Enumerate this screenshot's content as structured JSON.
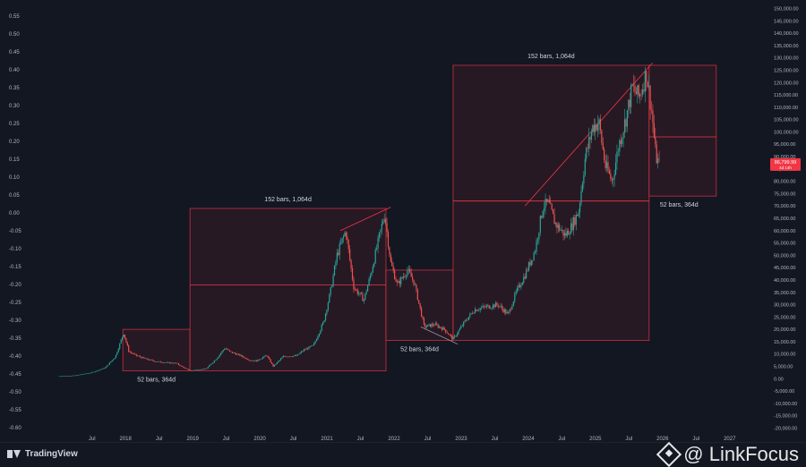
{
  "chart_data": {
    "type": "candlestick",
    "title": "",
    "xlabel": "",
    "ylabel": "",
    "colors": {
      "up": "#26a69a",
      "down": "#ef5350",
      "box_fill": "#2a1a24",
      "box_line": "#f23645",
      "background": "#131722",
      "text": "#b2b5be"
    },
    "x_ticks": [
      "Jul",
      "2018",
      "Jul",
      "2019",
      "Jul",
      "2020",
      "Jul",
      "2021",
      "Jul",
      "2022",
      "Jul",
      "2023",
      "Jul",
      "2024",
      "Jul",
      "2025",
      "Jul",
      "2026",
      "Jul",
      "2027"
    ],
    "left_ticks": [
      "0.55",
      "0.50",
      "0.45",
      "0.40",
      "0.35",
      "0.30",
      "0.25",
      "0.20",
      "0.15",
      "0.10",
      "0.05",
      "0.00",
      "-0.05",
      "-0.10",
      "-0.15",
      "-0.20",
      "-0.25",
      "-0.30",
      "-0.35",
      "-0.40",
      "-0.45",
      "-0.50",
      "-0.55",
      "-0.60"
    ],
    "right_ticks": [
      "150,000.00",
      "145,000.00",
      "140,000.00",
      "135,000.00",
      "130,000.00",
      "125,000.00",
      "120,000.00",
      "115,000.00",
      "110,000.00",
      "105,000.00",
      "100,000.00",
      "95,000.00",
      "90,000.00",
      "85,000.00",
      "80,000.00",
      "75,000.00",
      "70,000.00",
      "65,000.00",
      "60,000.00",
      "55,000.00",
      "50,000.00",
      "45,000.00",
      "40,000.00",
      "35,000.00",
      "30,000.00",
      "25,000.00",
      "20,000.00",
      "15,000.00",
      "10,000.00",
      "5,000.00",
      "0.00",
      "-5,000.00",
      "-10,000.00",
      "-15,000.00",
      "-20,000.00"
    ],
    "current_price": {
      "label": "86,799.99",
      "sub": "4d 14h",
      "value": 86800
    },
    "ranges": [
      {
        "label": "52 bars, 364d",
        "x0": 2017.96,
        "x1": 2018.96,
        "y_top": 20000,
        "y_bottom": 3200
      },
      {
        "label": "152 bars, 1,064d",
        "x0": 2018.96,
        "x1": 2021.88,
        "y_top": 69000,
        "y_bottom": 3200,
        "midline": 38000
      },
      {
        "label": "52 bars, 364d",
        "x0": 2021.88,
        "x1": 2022.88,
        "y_top": 44000,
        "y_bottom": 15500
      },
      {
        "label": "152 bars, 1,064d",
        "x0": 2022.88,
        "x1": 2025.8,
        "y_top": 127000,
        "y_bottom": 15500,
        "midline": 72000
      },
      {
        "label": "52 bars, 364d",
        "x0": 2025.8,
        "x1": 2026.8,
        "y_top": 127000,
        "y_bottom": 74000,
        "midline": 98000
      }
    ],
    "price_path": [
      [
        2017.0,
        1000
      ],
      [
        2017.25,
        1300
      ],
      [
        2017.5,
        2500
      ],
      [
        2017.7,
        4500
      ],
      [
        2017.85,
        9000
      ],
      [
        2017.97,
        18500
      ],
      [
        2018.05,
        11000
      ],
      [
        2018.15,
        9500
      ],
      [
        2018.3,
        8000
      ],
      [
        2018.45,
        7000
      ],
      [
        2018.6,
        6500
      ],
      [
        2018.75,
        6300
      ],
      [
        2018.9,
        4000
      ],
      [
        2018.96,
        3300
      ],
      [
        2019.2,
        4000
      ],
      [
        2019.35,
        8000
      ],
      [
        2019.48,
        12500
      ],
      [
        2019.55,
        11000
      ],
      [
        2019.7,
        9500
      ],
      [
        2019.85,
        7500
      ],
      [
        2019.95,
        7200
      ],
      [
        2020.1,
        9500
      ],
      [
        2020.2,
        5000
      ],
      [
        2020.35,
        9000
      ],
      [
        2020.55,
        9300
      ],
      [
        2020.65,
        11500
      ],
      [
        2020.8,
        13500
      ],
      [
        2020.95,
        23000
      ],
      [
        2021.05,
        35000
      ],
      [
        2021.15,
        50000
      ],
      [
        2021.28,
        60000
      ],
      [
        2021.4,
        37000
      ],
      [
        2021.55,
        32000
      ],
      [
        2021.65,
        42000
      ],
      [
        2021.75,
        54000
      ],
      [
        2021.86,
        67000
      ],
      [
        2021.95,
        47000
      ],
      [
        2022.05,
        38000
      ],
      [
        2022.2,
        44000
      ],
      [
        2022.3,
        39000
      ],
      [
        2022.45,
        21000
      ],
      [
        2022.6,
        22000
      ],
      [
        2022.75,
        20000
      ],
      [
        2022.88,
        16000
      ],
      [
        2023.05,
        23000
      ],
      [
        2023.2,
        28000
      ],
      [
        2023.35,
        29000
      ],
      [
        2023.55,
        30000
      ],
      [
        2023.7,
        26000
      ],
      [
        2023.82,
        35000
      ],
      [
        2023.95,
        42000
      ],
      [
        2024.1,
        52000
      ],
      [
        2024.22,
        70000
      ],
      [
        2024.3,
        71000
      ],
      [
        2024.4,
        63000
      ],
      [
        2024.55,
        58000
      ],
      [
        2024.65,
        62000
      ],
      [
        2024.75,
        68000
      ],
      [
        2024.85,
        90000
      ],
      [
        2024.96,
        102000
      ],
      [
        2025.05,
        104000
      ],
      [
        2025.15,
        86000
      ],
      [
        2025.25,
        80000
      ],
      [
        2025.35,
        95000
      ],
      [
        2025.45,
        105000
      ],
      [
        2025.55,
        118000
      ],
      [
        2025.65,
        114000
      ],
      [
        2025.76,
        124000
      ],
      [
        2025.84,
        108000
      ],
      [
        2025.9,
        90000
      ],
      [
        2025.95,
        86800
      ]
    ]
  },
  "footer": {
    "brand": "TradingView",
    "watermark": "@ LinkFocus"
  }
}
